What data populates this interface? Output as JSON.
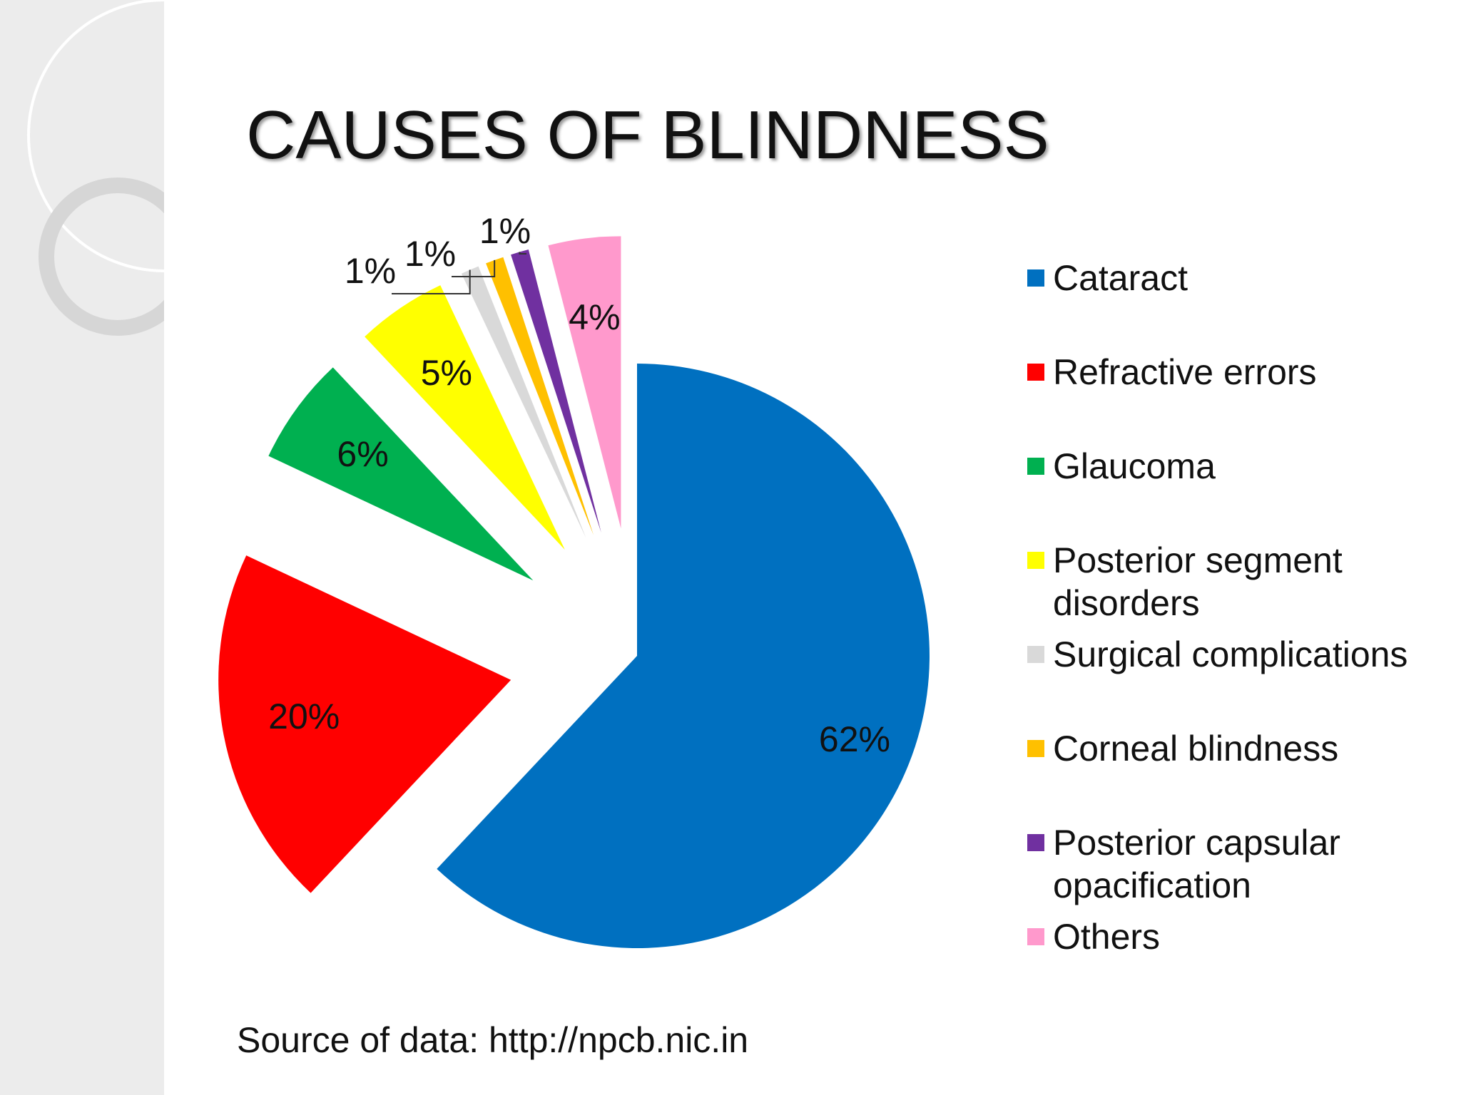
{
  "chart_data": {
    "type": "pie",
    "title": "CAUSES OF BLINDNESS",
    "categories": [
      "Cataract",
      "Refractive errors",
      "Glaucoma",
      "Posterior segment disorders",
      "Surgical complications",
      "Corneal blindness",
      "Posterior capsular opacification",
      "Others"
    ],
    "values": [
      62,
      20,
      6,
      5,
      1,
      1,
      1,
      4
    ],
    "value_labels": [
      "62%",
      "20%",
      "6%",
      "5%",
      "1%",
      "1%",
      "1%",
      "4%"
    ],
    "colors": [
      "#0070c0",
      "#ff0000",
      "#00b050",
      "#ffff00",
      "#d9d9d9",
      "#ffc000",
      "#7030a0",
      "#ff99cc"
    ],
    "legend": "right",
    "source": "Source of data: http://npcb.nic.in"
  }
}
